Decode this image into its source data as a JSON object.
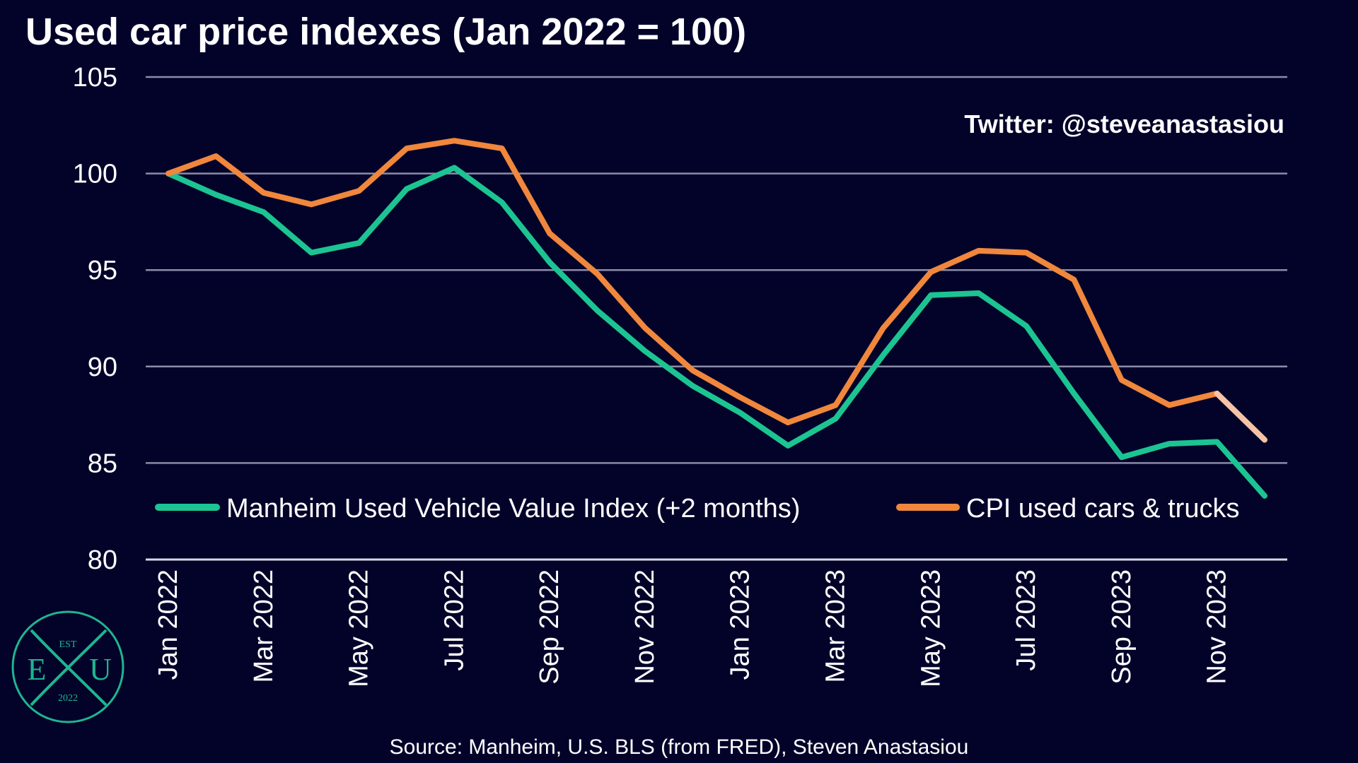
{
  "title": "Used car price indexes (Jan 2022 = 100)",
  "watermark": "Twitter: @steveanastasiou",
  "source": "Source: Manheim, U.S. BLS (from FRED), Steven Anastasiou",
  "logo": {
    "top_text": "EST",
    "left_letter": "E",
    "center_letter": "X",
    "right_letter": "U",
    "bottom_text": "2022",
    "color": "#1fb58f"
  },
  "colors": {
    "background": "#03032a",
    "grid": "#8c8ca8",
    "text": "#ffffff",
    "manheim": "#1cc492",
    "cpi": "#f0873c",
    "cpi_projected": "#f6c3a6"
  },
  "chart_data": {
    "type": "line",
    "title": "Used car price indexes (Jan 2022 = 100)",
    "xlabel": "",
    "ylabel": "",
    "ylim": [
      80,
      105
    ],
    "yticks": [
      80,
      85,
      90,
      95,
      100,
      105
    ],
    "grid": true,
    "legend_position": "bottom",
    "x": [
      "Jan 2022",
      "Feb 2022",
      "Mar 2022",
      "Apr 2022",
      "May 2022",
      "Jun 2022",
      "Jul 2022",
      "Aug 2022",
      "Sep 2022",
      "Oct 2022",
      "Nov 2022",
      "Dec 2022",
      "Jan 2023",
      "Feb 2023",
      "Mar 2023",
      "Apr 2023",
      "May 2023",
      "Jun 2023",
      "Jul 2023",
      "Aug 2023",
      "Sep 2023",
      "Oct 2023",
      "Nov 2023",
      "Dec 2023"
    ],
    "xtick_labels": [
      "Jan 2022",
      "Mar 2022",
      "May 2022",
      "Jul 2022",
      "Sep 2022",
      "Nov 2022",
      "Jan 2023",
      "Mar 2023",
      "May 2023",
      "Jul 2023",
      "Sep 2023",
      "Nov 2023"
    ],
    "series": [
      {
        "name": "Manheim Used Vehicle Value Index (+2 months)",
        "color": "#1cc492",
        "values": [
          100.0,
          98.9,
          98.0,
          95.9,
          96.4,
          99.2,
          100.3,
          98.5,
          95.4,
          92.9,
          90.8,
          89.0,
          87.6,
          85.9,
          87.3,
          90.6,
          93.7,
          93.8,
          92.1,
          88.6,
          85.3,
          86.0,
          86.1,
          83.3
        ]
      },
      {
        "name": "CPI used cars & trucks",
        "color": "#f0873c",
        "projected_color": "#f6c3a6",
        "projected_from_index": 22,
        "values": [
          100.0,
          100.9,
          99.0,
          98.4,
          99.1,
          101.3,
          101.7,
          101.3,
          96.9,
          94.8,
          92.0,
          89.8,
          88.4,
          87.1,
          88.0,
          92.0,
          94.9,
          96.0,
          95.9,
          94.5,
          89.3,
          88.0,
          88.6,
          86.2
        ]
      }
    ]
  }
}
